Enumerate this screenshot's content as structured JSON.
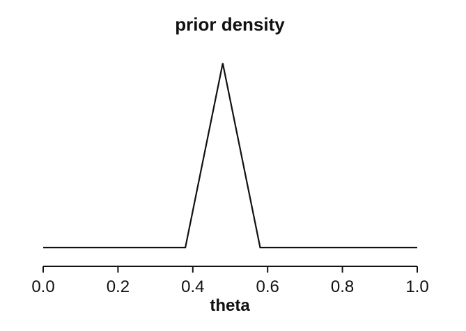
{
  "chart_data": {
    "type": "line",
    "title": "prior density",
    "xlabel": "theta",
    "ylabel": "",
    "xlim": [
      0.0,
      1.0
    ],
    "ylim": [
      0.0,
      10.0
    ],
    "x_ticks": [
      0.0,
      0.2,
      0.4,
      0.6,
      0.8,
      1.0
    ],
    "x_tick_labels": [
      "0.0",
      "0.2",
      "0.4",
      "0.6",
      "0.8",
      "1.0"
    ],
    "grid": false,
    "legend": "none",
    "colors": {
      "line": "#111111",
      "axis": "#111111"
    },
    "series": [
      {
        "x": [
          0.0,
          0.38,
          0.48,
          0.58,
          1.0
        ],
        "y": [
          0.0,
          0.0,
          10.0,
          0.0,
          0.0
        ]
      }
    ]
  }
}
